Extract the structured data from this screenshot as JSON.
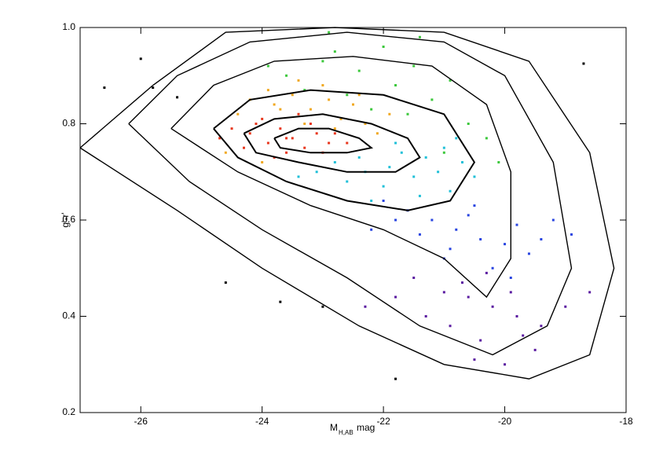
{
  "chart_data": {
    "type": "scatter",
    "xlabel": "M",
    "xlabel_sub": "H,AB",
    "xlabel_unit": "mag",
    "ylabel": "g'-r'",
    "xlim": [
      -27,
      -18
    ],
    "ylim": [
      0.2,
      1.0
    ],
    "xticks": [
      -26,
      -24,
      -22,
      -20,
      -18
    ],
    "yticks": [
      0.2,
      0.4,
      0.6,
      0.8,
      {
        "value": 1.0,
        "label": "1.0"
      }
    ],
    "series": [
      {
        "color": "#e8361c",
        "x": [
          -24.2,
          -23.9,
          -23.7,
          -23.5,
          -23.3,
          -23.1,
          -24.5,
          -24.0,
          -23.6,
          -23.2,
          -22.9,
          -23.8,
          -24.3,
          -23.4,
          -22.8,
          -24.7,
          -23.0,
          -23.6,
          -24.1,
          -22.6
        ],
        "y": [
          0.78,
          0.76,
          0.79,
          0.77,
          0.75,
          0.78,
          0.79,
          0.81,
          0.74,
          0.8,
          0.76,
          0.73,
          0.75,
          0.82,
          0.78,
          0.77,
          0.74,
          0.77,
          0.8,
          0.76
        ]
      },
      {
        "color": "#f0a820",
        "x": [
          -24.4,
          -23.8,
          -23.2,
          -22.7,
          -22.3,
          -23.5,
          -24.0,
          -22.9,
          -23.3,
          -22.5,
          -24.6,
          -23.9,
          -22.1,
          -23.0,
          -23.7,
          -22.4,
          -24.2,
          -22.8,
          -23.4,
          -21.9
        ],
        "y": [
          0.82,
          0.84,
          0.83,
          0.81,
          0.8,
          0.86,
          0.72,
          0.85,
          0.8,
          0.84,
          0.74,
          0.87,
          0.78,
          0.88,
          0.83,
          0.86,
          0.85,
          0.79,
          0.89,
          0.82
        ]
      },
      {
        "color": "#3cc83c",
        "x": [
          -23.6,
          -23.0,
          -22.4,
          -21.8,
          -21.2,
          -20.6,
          -22.8,
          -22.0,
          -21.5,
          -20.9,
          -23.3,
          -21.6,
          -20.3,
          -22.6,
          -21.0,
          -23.9,
          -22.2,
          -20.1,
          -21.4,
          -22.9
        ],
        "y": [
          0.9,
          0.93,
          0.91,
          0.88,
          0.85,
          0.8,
          0.95,
          0.96,
          0.92,
          0.89,
          0.87,
          0.82,
          0.77,
          0.86,
          0.74,
          0.92,
          0.83,
          0.72,
          0.98,
          0.99
        ]
      },
      {
        "color": "#20c0d8",
        "x": [
          -22.8,
          -22.3,
          -21.9,
          -21.5,
          -21.1,
          -20.7,
          -22.6,
          -22.0,
          -21.3,
          -20.9,
          -23.1,
          -21.7,
          -20.5,
          -22.4,
          -21.0,
          -22.2,
          -21.8,
          -20.8,
          -23.4,
          -21.4
        ],
        "y": [
          0.72,
          0.7,
          0.71,
          0.69,
          0.7,
          0.72,
          0.68,
          0.67,
          0.73,
          0.66,
          0.7,
          0.74,
          0.69,
          0.73,
          0.75,
          0.64,
          0.76,
          0.77,
          0.69,
          0.65
        ]
      },
      {
        "color": "#2844e0",
        "x": [
          -22.0,
          -21.6,
          -21.2,
          -20.8,
          -20.4,
          -20.0,
          -19.6,
          -21.4,
          -20.6,
          -19.8,
          -21.8,
          -20.2,
          -19.4,
          -21.0,
          -20.5,
          -19.2,
          -22.2,
          -20.9,
          -19.9,
          -18.9
        ],
        "y": [
          0.64,
          0.62,
          0.6,
          0.58,
          0.56,
          0.55,
          0.53,
          0.57,
          0.61,
          0.59,
          0.6,
          0.5,
          0.56,
          0.52,
          0.63,
          0.6,
          0.58,
          0.54,
          0.48,
          0.57
        ]
      },
      {
        "color": "#5a1aa0",
        "x": [
          -21.5,
          -21.0,
          -20.6,
          -20.2,
          -19.8,
          -19.4,
          -20.9,
          -20.4,
          -19.9,
          -19.5,
          -21.3,
          -20.7,
          -20.0,
          -19.0,
          -18.6,
          -21.8,
          -20.3,
          -19.7,
          -22.3,
          -20.5
        ],
        "y": [
          0.48,
          0.45,
          0.44,
          0.42,
          0.4,
          0.38,
          0.38,
          0.35,
          0.45,
          0.33,
          0.4,
          0.47,
          0.3,
          0.42,
          0.45,
          0.44,
          0.49,
          0.36,
          0.42,
          0.31
        ]
      },
      {
        "color": "#000000",
        "x": [
          -26.0,
          -26.6,
          -25.8,
          -25.4,
          -23.7,
          -24.6,
          -23.0,
          -21.8,
          -18.7
        ],
        "y": [
          0.935,
          0.875,
          0.875,
          0.855,
          0.43,
          0.47,
          0.42,
          0.27,
          0.925
        ]
      }
    ],
    "contours": [
      {
        "x": [
          -23.8,
          -23.4,
          -22.9,
          -22.4,
          -22.2,
          -22.6,
          -23.2,
          -23.7,
          -23.8
        ],
        "y": [
          0.77,
          0.79,
          0.79,
          0.77,
          0.75,
          0.74,
          0.74,
          0.75,
          0.77
        ]
      },
      {
        "x": [
          -24.3,
          -23.8,
          -23.0,
          -22.2,
          -21.6,
          -21.4,
          -21.8,
          -22.6,
          -23.4,
          -24.1,
          -24.3
        ],
        "y": [
          0.78,
          0.81,
          0.82,
          0.8,
          0.77,
          0.73,
          0.7,
          0.7,
          0.72,
          0.74,
          0.78
        ]
      },
      {
        "x": [
          -24.8,
          -24.2,
          -23.2,
          -22.0,
          -21.0,
          -20.5,
          -20.9,
          -21.6,
          -22.6,
          -23.6,
          -24.4,
          -24.8
        ],
        "y": [
          0.79,
          0.85,
          0.87,
          0.86,
          0.82,
          0.72,
          0.64,
          0.62,
          0.64,
          0.68,
          0.73,
          0.79
        ]
      },
      {
        "x": [
          -25.5,
          -24.8,
          -23.8,
          -22.5,
          -21.2,
          -20.3,
          -19.9,
          -19.9,
          -20.3,
          -21.0,
          -22.0,
          -23.2,
          -24.4,
          -25.5
        ],
        "y": [
          0.79,
          0.88,
          0.93,
          0.94,
          0.92,
          0.84,
          0.7,
          0.52,
          0.44,
          0.52,
          0.58,
          0.63,
          0.7,
          0.79
        ]
      },
      {
        "x": [
          -26.2,
          -25.4,
          -24.2,
          -22.6,
          -21.0,
          -20.0,
          -19.2,
          -18.9,
          -19.3,
          -20.2,
          -21.4,
          -22.6,
          -24.0,
          -25.2,
          -26.2
        ],
        "y": [
          0.8,
          0.9,
          0.97,
          0.99,
          0.97,
          0.9,
          0.72,
          0.5,
          0.38,
          0.32,
          0.38,
          0.48,
          0.58,
          0.68,
          0.8
        ]
      },
      {
        "x": [
          -27.0,
          -25.8,
          -24.6,
          -22.8,
          -21.0,
          -19.6,
          -18.6,
          -18.2,
          -18.6,
          -19.6,
          -21.0,
          -22.4,
          -24.0,
          -25.4,
          -27.0
        ],
        "y": [
          0.75,
          0.88,
          0.99,
          1.0,
          0.99,
          0.93,
          0.74,
          0.5,
          0.32,
          0.27,
          0.3,
          0.38,
          0.5,
          0.62,
          0.75
        ]
      }
    ]
  }
}
